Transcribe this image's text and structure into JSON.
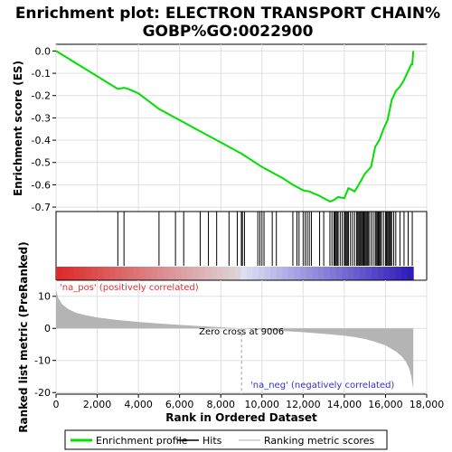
{
  "title_line1": "Enrichment plot: ELECTRON TRANSPORT CHAIN%",
  "title_line2": "GOBP%GO:0022900",
  "colors": {
    "profile": "#00e000",
    "hits": "#000000",
    "metric_fill": "#b4b4b4",
    "pos_label": "#e03030",
    "neg_label": "#3030c8"
  },
  "chart_data": {
    "type": "line",
    "es_panel": {
      "ylabel": "Enrichment score (ES)",
      "ylim": [
        -0.72,
        0.03
      ],
      "yticks": [
        0.0,
        -0.1,
        -0.2,
        -0.3,
        -0.4,
        -0.5,
        -0.6,
        -0.7
      ],
      "ytick_labels": [
        "0.0",
        "-0.1",
        "-0.2",
        "-0.3",
        "-0.4",
        "-0.5",
        "-0.6",
        "-0.7"
      ],
      "profile": {
        "x": [
          0,
          3000,
          3300,
          3500,
          4000,
          5000,
          6000,
          7000,
          8000,
          9000,
          10000,
          11000,
          11500,
          12000,
          12300,
          12800,
          13000,
          13300,
          13500,
          13700,
          14000,
          14200,
          14500,
          14700,
          15000,
          15300,
          15500,
          15700,
          15900,
          16100,
          16300,
          16500,
          16700,
          16900,
          17100,
          17250,
          17300,
          17350
        ],
        "y": [
          0.0,
          -0.17,
          -0.165,
          -0.17,
          -0.19,
          -0.26,
          -0.31,
          -0.36,
          -0.41,
          -0.46,
          -0.52,
          -0.57,
          -0.6,
          -0.625,
          -0.63,
          -0.65,
          -0.66,
          -0.675,
          -0.668,
          -0.655,
          -0.66,
          -0.615,
          -0.63,
          -0.6,
          -0.55,
          -0.52,
          -0.43,
          -0.4,
          -0.35,
          -0.31,
          -0.22,
          -0.18,
          -0.16,
          -0.13,
          -0.09,
          -0.06,
          -0.06,
          0.0
        ]
      }
    },
    "hits": [
      3000,
      3300,
      5000,
      5800,
      6200,
      7000,
      7400,
      7800,
      8400,
      8800,
      9000,
      9050,
      9150,
      9800,
      9900,
      10000,
      10100,
      10500,
      10700,
      11500,
      11700,
      11800,
      12000,
      12100,
      12200,
      12300,
      12400,
      12800,
      13000,
      13300,
      13400,
      13500,
      13550,
      13600,
      13650,
      13700,
      13800,
      13900,
      14000,
      14050,
      14100,
      14150,
      14200,
      14300,
      14400,
      14500,
      14600,
      14650,
      14700,
      14750,
      14800,
      14850,
      14900,
      14950,
      15000,
      15050,
      15100,
      15150,
      15200,
      15300,
      15400,
      15500,
      15550,
      15600,
      15650,
      15700,
      15750,
      15800,
      15900,
      16000,
      16050,
      16100,
      16150,
      16200,
      16250,
      16300,
      16400,
      16500,
      16700,
      16900,
      17100,
      17300
    ],
    "metric_panel": {
      "ylabel": "Ranked list metric (PreRanked)",
      "xlabel": "Rank in Ordered Dataset",
      "ylim": [
        -20.5,
        15
      ],
      "yticks": [
        10,
        0,
        -10,
        -20
      ],
      "ytick_labels": [
        "10",
        "0",
        "-10",
        "-20"
      ],
      "xlim": [
        0,
        18000
      ],
      "xticks": [
        0,
        2000,
        4000,
        6000,
        8000,
        10000,
        12000,
        14000,
        16000,
        18000
      ],
      "xtick_labels": [
        "0",
        "2,000",
        "4,000",
        "6,000",
        "8,000",
        "10,000",
        "12,000",
        "14,000",
        "16,000",
        "18,000"
      ],
      "metric": {
        "x": [
          0,
          100,
          300,
          600,
          1000,
          1500,
          2000,
          3000,
          4000,
          5000,
          6000,
          7000,
          8000,
          9006,
          10000,
          11000,
          12000,
          13000,
          14000,
          14500,
          15000,
          15500,
          16000,
          16500,
          16800,
          17000,
          17150,
          17250,
          17350
        ],
        "y": [
          12,
          9.5,
          7.5,
          6,
          4.8,
          4,
          3.4,
          2.6,
          2.0,
          1.5,
          1.1,
          0.7,
          0.35,
          0,
          -0.4,
          -0.8,
          -1.2,
          -1.7,
          -2.3,
          -2.7,
          -3.3,
          -4.2,
          -5.3,
          -7.2,
          -8.8,
          -10.5,
          -12.5,
          -15,
          -19
        ]
      },
      "zero_cross_label": "Zero cross at 9006",
      "zero_cross_x": 9006,
      "pos_label": "'na_pos' (positively correlated)",
      "neg_label": "'na_neg' (negatively correlated)"
    },
    "legend": [
      {
        "label": "Enrichment profile",
        "kind": "line",
        "color": "#00e000"
      },
      {
        "label": "Hits",
        "kind": "line",
        "color": "#000000"
      },
      {
        "label": "Ranking metric scores",
        "kind": "line",
        "color": "#c8c8c8"
      }
    ]
  }
}
